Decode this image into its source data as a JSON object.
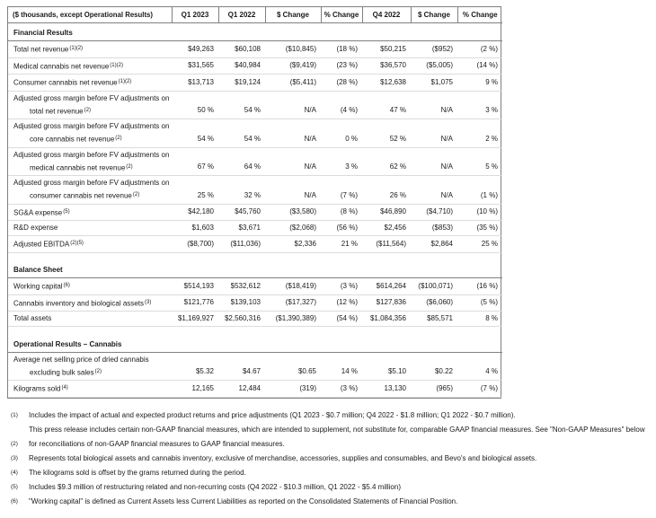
{
  "colors": {
    "background": "#ffffff",
    "text": "#1a1a1a",
    "table_border": "#808080",
    "row_divider": "#dcdcdc"
  },
  "table": {
    "corner_label": "($ thousands, except Operational Results)",
    "columns": [
      "Q1 2023",
      "Q1 2022",
      "$ Change",
      "% Change",
      "Q4 2022",
      "$ Change",
      "% Change"
    ],
    "rows": [
      {
        "type": "section",
        "label": "Financial Results"
      },
      {
        "type": "data",
        "label": "Total net revenue",
        "sup": "(1)(2)",
        "values": [
          "$49,263",
          "$60,108",
          "($10,845)",
          "(18 %)",
          "$50,215",
          "($952)",
          "(2 %)"
        ]
      },
      {
        "type": "data",
        "label": "Medical cannabis net revenue",
        "sup": "(1)(2)",
        "values": [
          "$31,565",
          "$40,984",
          "($9,419)",
          "(23 %)",
          "$36,570",
          "($5,005)",
          "(14 %)"
        ]
      },
      {
        "type": "data",
        "label": "Consumer cannabis net revenue",
        "sup": "(1)(2)",
        "values": [
          "$13,713",
          "$19,124",
          "($5,411)",
          "(28 %)",
          "$12,638",
          "$1,075",
          "9 %"
        ]
      },
      {
        "type": "label",
        "label": "Adjusted gross margin before FV adjustments on"
      },
      {
        "type": "data",
        "indent": true,
        "label": "total net revenue",
        "sup": "(2)",
        "values": [
          "50 %",
          "54 %",
          "N/A",
          "(4 %)",
          "47 %",
          "N/A",
          "3 %"
        ]
      },
      {
        "type": "label",
        "label": "Adjusted gross margin before FV adjustments on"
      },
      {
        "type": "data",
        "indent": true,
        "label": "core cannabis net revenue",
        "sup": "(2)",
        "values": [
          "54 %",
          "54 %",
          "N/A",
          "0 %",
          "52 %",
          "N/A",
          "2 %"
        ]
      },
      {
        "type": "label",
        "label": "Adjusted gross margin before FV adjustments on"
      },
      {
        "type": "data",
        "indent": true,
        "label": "medical cannabis net revenue",
        "sup": "(2)",
        "values": [
          "67 %",
          "64 %",
          "N/A",
          "3 %",
          "62 %",
          "N/A",
          "5 %"
        ]
      },
      {
        "type": "label",
        "label": "Adjusted gross margin before FV adjustments on"
      },
      {
        "type": "data",
        "indent": true,
        "label": "consumer cannabis net revenue",
        "sup": "(2)",
        "values": [
          "25 %",
          "32 %",
          "N/A",
          "(7 %)",
          "26 %",
          "N/A",
          "(1 %)"
        ]
      },
      {
        "type": "data",
        "label": "SG&A expense",
        "sup": "(5)",
        "values": [
          "$42,180",
          "$45,760",
          "($3,580)",
          "(8 %)",
          "$46,890",
          "($4,710)",
          "(10 %)"
        ]
      },
      {
        "type": "data",
        "label": "R&D expense",
        "values": [
          "$1,603",
          "$3,671",
          "($2,068)",
          "(56 %)",
          "$2,456",
          "($853)",
          "(35 %)"
        ]
      },
      {
        "type": "data",
        "label": "Adjusted EBITDA",
        "sup": "(2)(5)",
        "values": [
          "($8,700)",
          "($11,036)",
          "$2,336",
          "21 %",
          "($11,564)",
          "$2,864",
          "25 %"
        ]
      },
      {
        "type": "spacer"
      },
      {
        "type": "section",
        "label": "Balance Sheet"
      },
      {
        "type": "data",
        "label": "Working capital",
        "sup": "(6)",
        "values": [
          "$514,193",
          "$532,612",
          "($18,419)",
          "(3 %)",
          "$614,264",
          "($100,071)",
          "(16 %)"
        ]
      },
      {
        "type": "data",
        "label": "Cannabis inventory and biological assets",
        "sup": "(3)",
        "values": [
          "$121,776",
          "$139,103",
          "($17,327)",
          "(12 %)",
          "$127,836",
          "($6,060)",
          "(5 %)"
        ]
      },
      {
        "type": "data",
        "label": "Total assets",
        "values": [
          "$1,169,927",
          "$2,560,316",
          "($1,390,389)",
          "(54 %)",
          "$1,084,356",
          "$85,571",
          "8 %"
        ]
      },
      {
        "type": "spacer"
      },
      {
        "type": "section",
        "label": "Operational Results – Cannabis"
      },
      {
        "type": "label",
        "label": "Average net selling price of dried cannabis"
      },
      {
        "type": "data",
        "indent": true,
        "label": "excluding bulk sales",
        "sup": "(2)",
        "values": [
          "$5.32",
          "$4.67",
          "$0.65",
          "14 %",
          "$5.10",
          "$0.22",
          "4 %"
        ]
      },
      {
        "type": "data",
        "label": "Kilograms sold",
        "sup": "(4)",
        "values": [
          "12,165",
          "12,484",
          "(319)",
          "(3 %)",
          "13,130",
          "(965)",
          "(7 %)"
        ]
      }
    ]
  },
  "footnotes": [
    {
      "marker": "(1)",
      "text": "Includes the impact of actual and expected product returns and price adjustments (Q1 2023 - $0.7 million; Q4 2022 - $1.8 million; Q1 2022 - $0.7 million)."
    },
    {
      "marker": "",
      "text": "This press release includes certain non-GAAP financial measures, which are intended to supplement, not substitute for, comparable GAAP financial measures. See \"Non-GAAP Measures\" below"
    },
    {
      "marker": "(2)",
      "text": "for reconciliations of non-GAAP financial measures to GAAP financial measures."
    },
    {
      "marker": "(3)",
      "text": "Represents total biological assets and cannabis inventory, exclusive of merchandise, accessories, supplies and consumables, and Bevo's and biological assets."
    },
    {
      "marker": "(4)",
      "text": "The kilograms sold is offset by the grams returned during the period."
    },
    {
      "marker": "(5)",
      "text": "Includes $9.3 million of restructuring related and non-recurring costs (Q4 2022 - $10.3 million, Q1 2022 - $5.4 million)"
    },
    {
      "marker": "(6)",
      "text": "\"Working capital\" is defined as Current Assets less Current Liabilities as reported on the Consolidated Statements of Financial Position."
    }
  ]
}
